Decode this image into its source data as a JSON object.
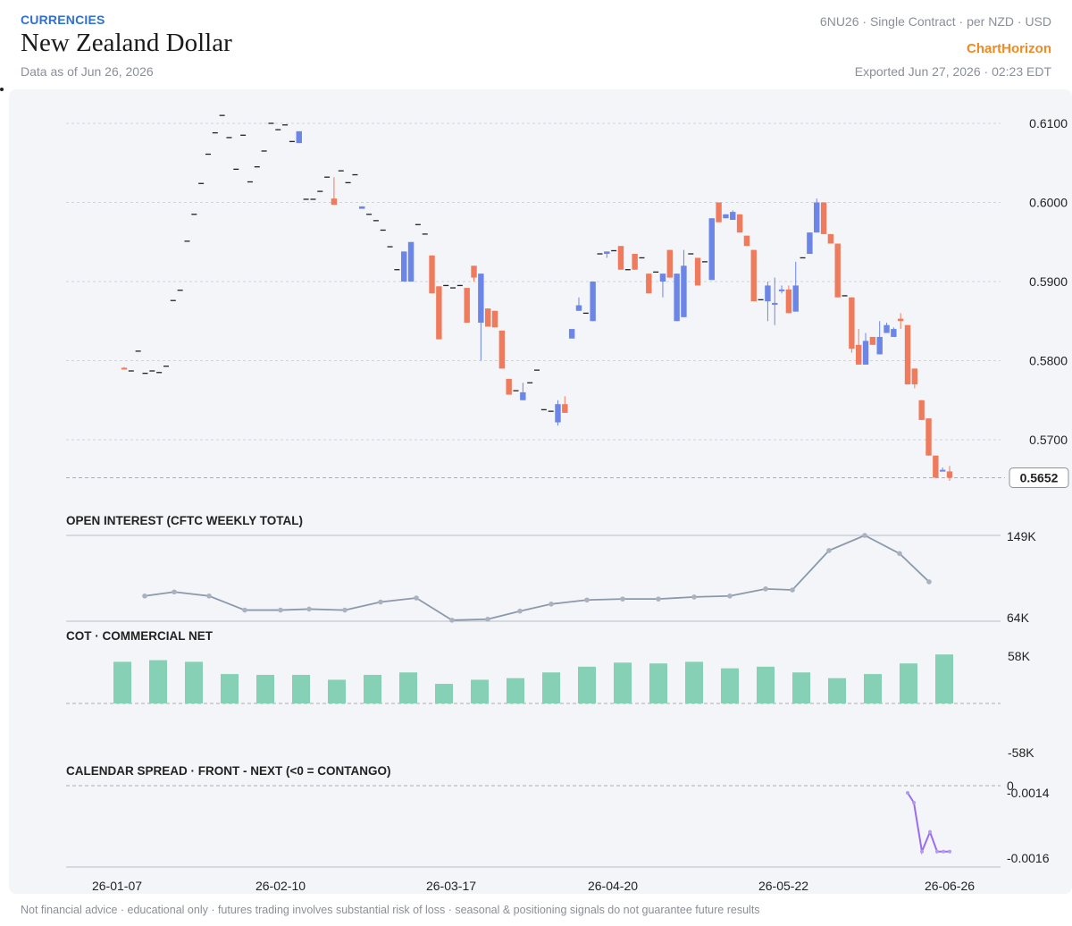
{
  "header": {
    "category": "CURRENCIES",
    "title": "New Zealand Dollar",
    "as_of": "Data as of Jun 26, 2026",
    "contract": "6NU26 · Single Contract · per NZD · USD",
    "brand": "ChartHorizon",
    "exported": "Exported Jun 27, 2026 · 02:23 EDT"
  },
  "footer": "Not financial advice · educational only · futures trading involves substantial risk of loss · seasonal & positioning signals do not guarantee future results",
  "colors": {
    "up": "#6b86e6",
    "down": "#ef7b5c",
    "oi_line": "#8c99ab",
    "cot_bar": "#86d1b6",
    "spread_line": "#9b6cf0",
    "accent": "#2f6fd6",
    "brand": "#f08a24"
  },
  "chart_data": [
    {
      "type": "candlestick",
      "title": "",
      "ylim": [
        0.5648,
        0.6122
      ],
      "y_ticks": [
        "0.6100",
        "0.6000",
        "0.5900",
        "0.5800",
        "0.5700"
      ],
      "last_price": "0.5652",
      "x_ticks": [
        "26-01-07",
        "26-02-10",
        "26-03-17",
        "26-04-20",
        "26-05-22",
        "26-06-26"
      ],
      "candles": [
        {
          "o": 0.5791,
          "h": 0.5792,
          "l": 0.579,
          "c": 0.579
        },
        {
          "o": 0.5787,
          "h": 0.5787,
          "l": 0.5787,
          "c": 0.5787
        },
        {
          "o": 0.5812,
          "h": 0.5812,
          "l": 0.5812,
          "c": 0.5812
        },
        {
          "o": 0.5784,
          "h": 0.5784,
          "l": 0.5784,
          "c": 0.5784
        },
        {
          "o": 0.5787,
          "h": 0.5787,
          "l": 0.5787,
          "c": 0.5787
        },
        {
          "o": 0.5785,
          "h": 0.5785,
          "l": 0.5785,
          "c": 0.5785
        },
        {
          "o": 0.5793,
          "h": 0.5793,
          "l": 0.5793,
          "c": 0.5793
        },
        {
          "o": 0.5876,
          "h": 0.5876,
          "l": 0.5876,
          "c": 0.5876
        },
        {
          "o": 0.5889,
          "h": 0.5889,
          "l": 0.5889,
          "c": 0.5889
        },
        {
          "o": 0.5951,
          "h": 0.5951,
          "l": 0.5951,
          "c": 0.5951
        },
        {
          "o": 0.5985,
          "h": 0.5985,
          "l": 0.5985,
          "c": 0.5985
        },
        {
          "o": 0.6024,
          "h": 0.6024,
          "l": 0.6024,
          "c": 0.6024
        },
        {
          "o": 0.6061,
          "h": 0.6061,
          "l": 0.6061,
          "c": 0.6061
        },
        {
          "o": 0.6088,
          "h": 0.6088,
          "l": 0.6088,
          "c": 0.6088
        },
        {
          "o": 0.611,
          "h": 0.611,
          "l": 0.611,
          "c": 0.611
        },
        {
          "o": 0.6082,
          "h": 0.6082,
          "l": 0.6082,
          "c": 0.6082
        },
        {
          "o": 0.6042,
          "h": 0.6042,
          "l": 0.6042,
          "c": 0.6042
        },
        {
          "o": 0.6085,
          "h": 0.6085,
          "l": 0.6085,
          "c": 0.6085
        },
        {
          "o": 0.6026,
          "h": 0.6026,
          "l": 0.6026,
          "c": 0.6026
        },
        {
          "o": 0.6045,
          "h": 0.6045,
          "l": 0.6045,
          "c": 0.6045
        },
        {
          "o": 0.6065,
          "h": 0.6065,
          "l": 0.6065,
          "c": 0.6065
        },
        {
          "o": 0.61,
          "h": 0.61,
          "l": 0.61,
          "c": 0.61
        },
        {
          "o": 0.6092,
          "h": 0.6092,
          "l": 0.6092,
          "c": 0.6092
        },
        {
          "o": 0.6098,
          "h": 0.6098,
          "l": 0.6098,
          "c": 0.6098
        },
        {
          "o": 0.6077,
          "h": 0.6077,
          "l": 0.6077,
          "c": 0.6077
        },
        {
          "o": 0.6075,
          "h": 0.609,
          "l": 0.6075,
          "c": 0.609
        },
        {
          "o": 0.6004,
          "h": 0.6004,
          "l": 0.6004,
          "c": 0.6004
        },
        {
          "o": 0.6004,
          "h": 0.6004,
          "l": 0.6004,
          "c": 0.6004
        },
        {
          "o": 0.6014,
          "h": 0.6014,
          "l": 0.6014,
          "c": 0.6014
        },
        {
          "o": 0.6032,
          "h": 0.6032,
          "l": 0.6032,
          "c": 0.6032
        },
        {
          "o": 0.6005,
          "h": 0.6032,
          "l": 0.5997,
          "c": 0.5997
        },
        {
          "o": 0.604,
          "h": 0.604,
          "l": 0.604,
          "c": 0.604
        },
        {
          "o": 0.6025,
          "h": 0.6025,
          "l": 0.6025,
          "c": 0.6025
        },
        {
          "o": 0.6035,
          "h": 0.6035,
          "l": 0.6035,
          "c": 0.6035
        },
        {
          "o": 0.5992,
          "h": 0.5995,
          "l": 0.5992,
          "c": 0.5995
        },
        {
          "o": 0.5985,
          "h": 0.5985,
          "l": 0.5985,
          "c": 0.5985
        },
        {
          "o": 0.5977,
          "h": 0.5977,
          "l": 0.5977,
          "c": 0.5977
        },
        {
          "o": 0.5965,
          "h": 0.5965,
          "l": 0.5965,
          "c": 0.5965
        },
        {
          "o": 0.5944,
          "h": 0.5944,
          "l": 0.5944,
          "c": 0.5944
        },
        {
          "o": 0.5915,
          "h": 0.5915,
          "l": 0.5915,
          "c": 0.5915
        },
        {
          "o": 0.59,
          "h": 0.5938,
          "l": 0.59,
          "c": 0.5938
        },
        {
          "o": 0.59,
          "h": 0.595,
          "l": 0.59,
          "c": 0.595
        },
        {
          "o": 0.5972,
          "h": 0.5972,
          "l": 0.5972,
          "c": 0.5972
        },
        {
          "o": 0.596,
          "h": 0.596,
          "l": 0.596,
          "c": 0.596
        },
        {
          "o": 0.5933,
          "h": 0.5933,
          "l": 0.5885,
          "c": 0.5885
        },
        {
          "o": 0.5894,
          "h": 0.5894,
          "l": 0.5827,
          "c": 0.5827
        },
        {
          "o": 0.5895,
          "h": 0.5895,
          "l": 0.5895,
          "c": 0.5895
        },
        {
          "o": 0.5892,
          "h": 0.5892,
          "l": 0.5892,
          "c": 0.5892
        },
        {
          "o": 0.5895,
          "h": 0.5895,
          "l": 0.5895,
          "c": 0.5895
        },
        {
          "o": 0.5892,
          "h": 0.5892,
          "l": 0.5848,
          "c": 0.5848
        },
        {
          "o": 0.592,
          "h": 0.592,
          "l": 0.59,
          "c": 0.5905
        },
        {
          "o": 0.5848,
          "h": 0.591,
          "l": 0.58,
          "c": 0.591
        },
        {
          "o": 0.5866,
          "h": 0.5866,
          "l": 0.5843,
          "c": 0.5843
        },
        {
          "o": 0.5863,
          "h": 0.5863,
          "l": 0.5842,
          "c": 0.5842
        },
        {
          "o": 0.5838,
          "h": 0.5838,
          "l": 0.579,
          "c": 0.579
        },
        {
          "o": 0.5777,
          "h": 0.5777,
          "l": 0.5757,
          "c": 0.5757
        },
        {
          "o": 0.5762,
          "h": 0.5762,
          "l": 0.5762,
          "c": 0.5762
        },
        {
          "o": 0.575,
          "h": 0.5772,
          "l": 0.575,
          "c": 0.576
        },
        {
          "o": 0.5772,
          "h": 0.5772,
          "l": 0.5772,
          "c": 0.5772
        },
        {
          "o": 0.5788,
          "h": 0.5788,
          "l": 0.5788,
          "c": 0.5788
        },
        {
          "o": 0.5738,
          "h": 0.5738,
          "l": 0.5738,
          "c": 0.5738
        },
        {
          "o": 0.5736,
          "h": 0.5736,
          "l": 0.5736,
          "c": 0.5736
        },
        {
          "o": 0.5722,
          "h": 0.575,
          "l": 0.5718,
          "c": 0.5745
        },
        {
          "o": 0.5745,
          "h": 0.5755,
          "l": 0.5734,
          "c": 0.5734
        },
        {
          "o": 0.5828,
          "h": 0.584,
          "l": 0.5828,
          "c": 0.584
        },
        {
          "o": 0.5863,
          "h": 0.588,
          "l": 0.5863,
          "c": 0.587
        },
        {
          "o": 0.586,
          "h": 0.586,
          "l": 0.586,
          "c": 0.586
        },
        {
          "o": 0.585,
          "h": 0.59,
          "l": 0.585,
          "c": 0.59
        },
        {
          "o": 0.5935,
          "h": 0.5935,
          "l": 0.5935,
          "c": 0.5935
        },
        {
          "o": 0.5935,
          "h": 0.5938,
          "l": 0.593,
          "c": 0.5938
        },
        {
          "o": 0.5939,
          "h": 0.5939,
          "l": 0.5939,
          "c": 0.5939
        },
        {
          "o": 0.5945,
          "h": 0.5945,
          "l": 0.5915,
          "c": 0.5915
        },
        {
          "o": 0.5915,
          "h": 0.5915,
          "l": 0.5915,
          "c": 0.5915
        },
        {
          "o": 0.5935,
          "h": 0.5935,
          "l": 0.5915,
          "c": 0.5915
        },
        {
          "o": 0.593,
          "h": 0.593,
          "l": 0.593,
          "c": 0.593
        },
        {
          "o": 0.591,
          "h": 0.591,
          "l": 0.5885,
          "c": 0.5885
        },
        {
          "o": 0.5912,
          "h": 0.5912,
          "l": 0.5912,
          "c": 0.5912
        },
        {
          "o": 0.59,
          "h": 0.591,
          "l": 0.588,
          "c": 0.591
        },
        {
          "o": 0.594,
          "h": 0.594,
          "l": 0.5905,
          "c": 0.5905
        },
        {
          "o": 0.585,
          "h": 0.591,
          "l": 0.585,
          "c": 0.591
        },
        {
          "o": 0.5855,
          "h": 0.594,
          "l": 0.5855,
          "c": 0.592
        },
        {
          "o": 0.5935,
          "h": 0.5935,
          "l": 0.5935,
          "c": 0.5935
        },
        {
          "o": 0.593,
          "h": 0.593,
          "l": 0.5895,
          "c": 0.5895
        },
        {
          "o": 0.5925,
          "h": 0.5925,
          "l": 0.5925,
          "c": 0.5925
        },
        {
          "o": 0.5902,
          "h": 0.598,
          "l": 0.5902,
          "c": 0.598
        },
        {
          "o": 0.6,
          "h": 0.6,
          "l": 0.5975,
          "c": 0.5975
        },
        {
          "o": 0.598,
          "h": 0.5985,
          "l": 0.598,
          "c": 0.5985
        },
        {
          "o": 0.5978,
          "h": 0.599,
          "l": 0.5978,
          "c": 0.5988
        },
        {
          "o": 0.5985,
          "h": 0.5985,
          "l": 0.5962,
          "c": 0.5962
        },
        {
          "o": 0.5958,
          "h": 0.5958,
          "l": 0.5945,
          "c": 0.5945
        },
        {
          "o": 0.594,
          "h": 0.594,
          "l": 0.5875,
          "c": 0.5875
        },
        {
          "o": 0.5877,
          "h": 0.5877,
          "l": 0.5877,
          "c": 0.5877
        },
        {
          "o": 0.5875,
          "h": 0.59,
          "l": 0.585,
          "c": 0.5895
        },
        {
          "o": 0.5873,
          "h": 0.5905,
          "l": 0.5845,
          "c": 0.5873
        },
        {
          "o": 0.589,
          "h": 0.5895,
          "l": 0.5885,
          "c": 0.589
        },
        {
          "o": 0.589,
          "h": 0.5895,
          "l": 0.586,
          "c": 0.586
        },
        {
          "o": 0.5862,
          "h": 0.5925,
          "l": 0.5862,
          "c": 0.5895
        },
        {
          "o": 0.593,
          "h": 0.593,
          "l": 0.593,
          "c": 0.593
        },
        {
          "o": 0.5935,
          "h": 0.5962,
          "l": 0.5935,
          "c": 0.5962
        },
        {
          "o": 0.5962,
          "h": 0.6005,
          "l": 0.5962,
          "c": 0.6
        },
        {
          "o": 0.6,
          "h": 0.6,
          "l": 0.596,
          "c": 0.596
        },
        {
          "o": 0.596,
          "h": 0.596,
          "l": 0.5948,
          "c": 0.5948
        },
        {
          "o": 0.5948,
          "h": 0.5948,
          "l": 0.588,
          "c": 0.588
        },
        {
          "o": 0.5882,
          "h": 0.5882,
          "l": 0.5882,
          "c": 0.5882
        },
        {
          "o": 0.588,
          "h": 0.588,
          "l": 0.581,
          "c": 0.5815
        },
        {
          "o": 0.582,
          "h": 0.584,
          "l": 0.5795,
          "c": 0.5795
        },
        {
          "o": 0.5795,
          "h": 0.5835,
          "l": 0.5795,
          "c": 0.5825
        },
        {
          "o": 0.583,
          "h": 0.583,
          "l": 0.582,
          "c": 0.582
        },
        {
          "o": 0.5808,
          "h": 0.585,
          "l": 0.5808,
          "c": 0.583
        },
        {
          "o": 0.5835,
          "h": 0.5848,
          "l": 0.5835,
          "c": 0.5845
        },
        {
          "o": 0.583,
          "h": 0.5842,
          "l": 0.583,
          "c": 0.584
        },
        {
          "o": 0.5853,
          "h": 0.586,
          "l": 0.584,
          "c": 0.585
        },
        {
          "o": 0.5845,
          "h": 0.5845,
          "l": 0.577,
          "c": 0.577
        },
        {
          "o": 0.579,
          "h": 0.579,
          "l": 0.5765,
          "c": 0.577
        },
        {
          "o": 0.575,
          "h": 0.575,
          "l": 0.5725,
          "c": 0.5725
        },
        {
          "o": 0.5727,
          "h": 0.5727,
          "l": 0.568,
          "c": 0.568
        },
        {
          "o": 0.568,
          "h": 0.568,
          "l": 0.5652,
          "c": 0.5652
        },
        {
          "o": 0.5662,
          "h": 0.5665,
          "l": 0.5662,
          "c": 0.5662
        },
        {
          "o": 0.566,
          "h": 0.5667,
          "l": 0.5648,
          "c": 0.5652
        }
      ]
    },
    {
      "type": "line",
      "title": "OPEN INTEREST (CFTC WEEKLY TOTAL)",
      "ylim": [
        64000,
        149000
      ],
      "y_ticks": [
        "149K",
        "64K"
      ],
      "values": [
        89000,
        93000,
        89000,
        75000,
        75000,
        76000,
        75000,
        83000,
        87000,
        65000,
        66000,
        74000,
        81000,
        85000,
        86000,
        86000,
        88000,
        89000,
        96000,
        95000,
        134000,
        149000,
        131000,
        103000
      ]
    },
    {
      "type": "bar",
      "title": "COT · COMMERCIAL NET",
      "ylim": [
        -58000,
        58000
      ],
      "y_ticks": [
        "58K",
        "-58K"
      ],
      "values": [
        51000,
        53000,
        51000,
        36000,
        35000,
        35000,
        29000,
        35000,
        38000,
        24000,
        29000,
        31000,
        38000,
        45000,
        50000,
        49000,
        51000,
        43000,
        45000,
        38000,
        31000,
        36000,
        49000,
        60000
      ]
    },
    {
      "type": "line",
      "title": "CALENDAR SPREAD · FRONT - NEXT (<0 = CONTANGO)",
      "zero_label": "0",
      "ylim": [
        -0.00163,
        0.00015
      ],
      "y_ticks": [
        "-0.0014",
        "-0.0016"
      ],
      "values": [
        -0.0014,
        -0.00143,
        -0.00158,
        -0.00152,
        -0.00158,
        -0.00158,
        -0.00158
      ]
    }
  ]
}
